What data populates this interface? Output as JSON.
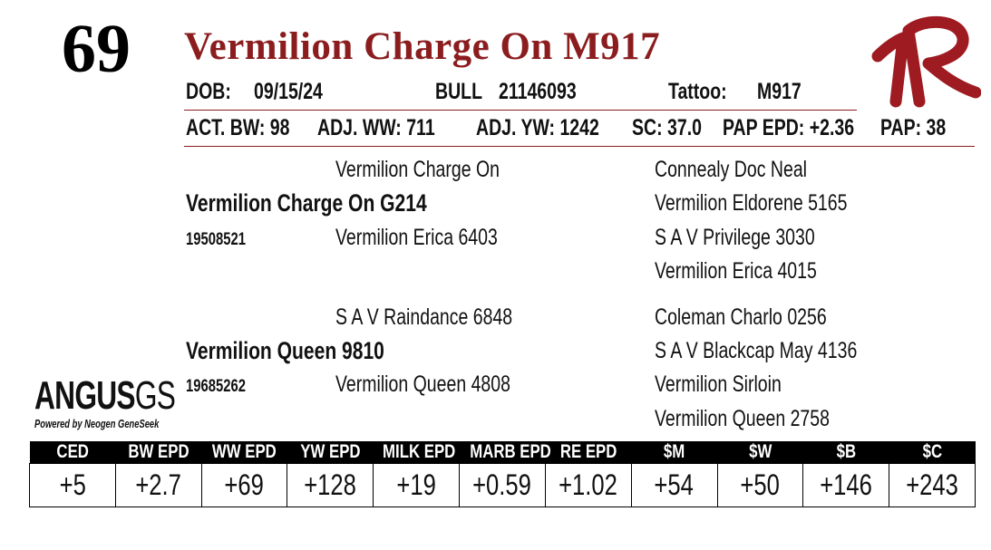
{
  "lot_number": "69",
  "name": "Vermilion Charge On M917",
  "info_row": {
    "dob_label": "DOB:",
    "dob": "09/15/24",
    "sex_label": "BULL",
    "reg_number": "21146093",
    "tattoo_label": "Tattoo:",
    "tattoo": "M917"
  },
  "performance_row": {
    "act_bw": "ACT. BW: 98",
    "adj_ww": "ADJ. WW: 711",
    "adj_yw": "ADJ. YW: 1242",
    "sc": "SC: 37.0",
    "pap_epd": "PAP EPD: +2.36",
    "pap": "PAP: 38"
  },
  "pedigree": {
    "sire": {
      "name": "Vermilion Charge On G214",
      "reg": "19508521",
      "sire": "Vermilion Charge On",
      "dam": "Vermilion Erica 6403"
    },
    "dam": {
      "name": "Vermilion Queen 9810",
      "reg": "19685262",
      "sire": "S A V Raindance 6848",
      "dam": "Vermilion Queen 4808"
    },
    "great_grandparents": [
      "Connealy Doc Neal",
      "Vermilion Eldorene 5165",
      "S A V Privilege 3030",
      "Vermilion Erica 4015",
      "Coleman Charlo 0256",
      "S A V Blackcap May 4136",
      "Vermilion Sirloin",
      "Vermilion Queen 2758"
    ]
  },
  "logo": {
    "word_main": "ANGUS",
    "word_gs": "GS",
    "tagline": "Powered by Neogen GeneSeek"
  },
  "epd_table": {
    "headers": [
      "CED",
      "BW EPD",
      "WW EPD",
      "YW EPD",
      "MILK EPD",
      "MARB EPD",
      "RE EPD",
      "$M",
      "$W",
      "$B",
      "$C"
    ],
    "values": [
      "+5",
      "+2.7",
      "+69",
      "+128",
      "+19",
      "+0.59",
      "+1.02",
      "+54",
      "+50",
      "+146",
      "+243"
    ]
  },
  "colors": {
    "accent": "#8b1d1f",
    "text": "#111111",
    "header_bg": "#000000"
  }
}
